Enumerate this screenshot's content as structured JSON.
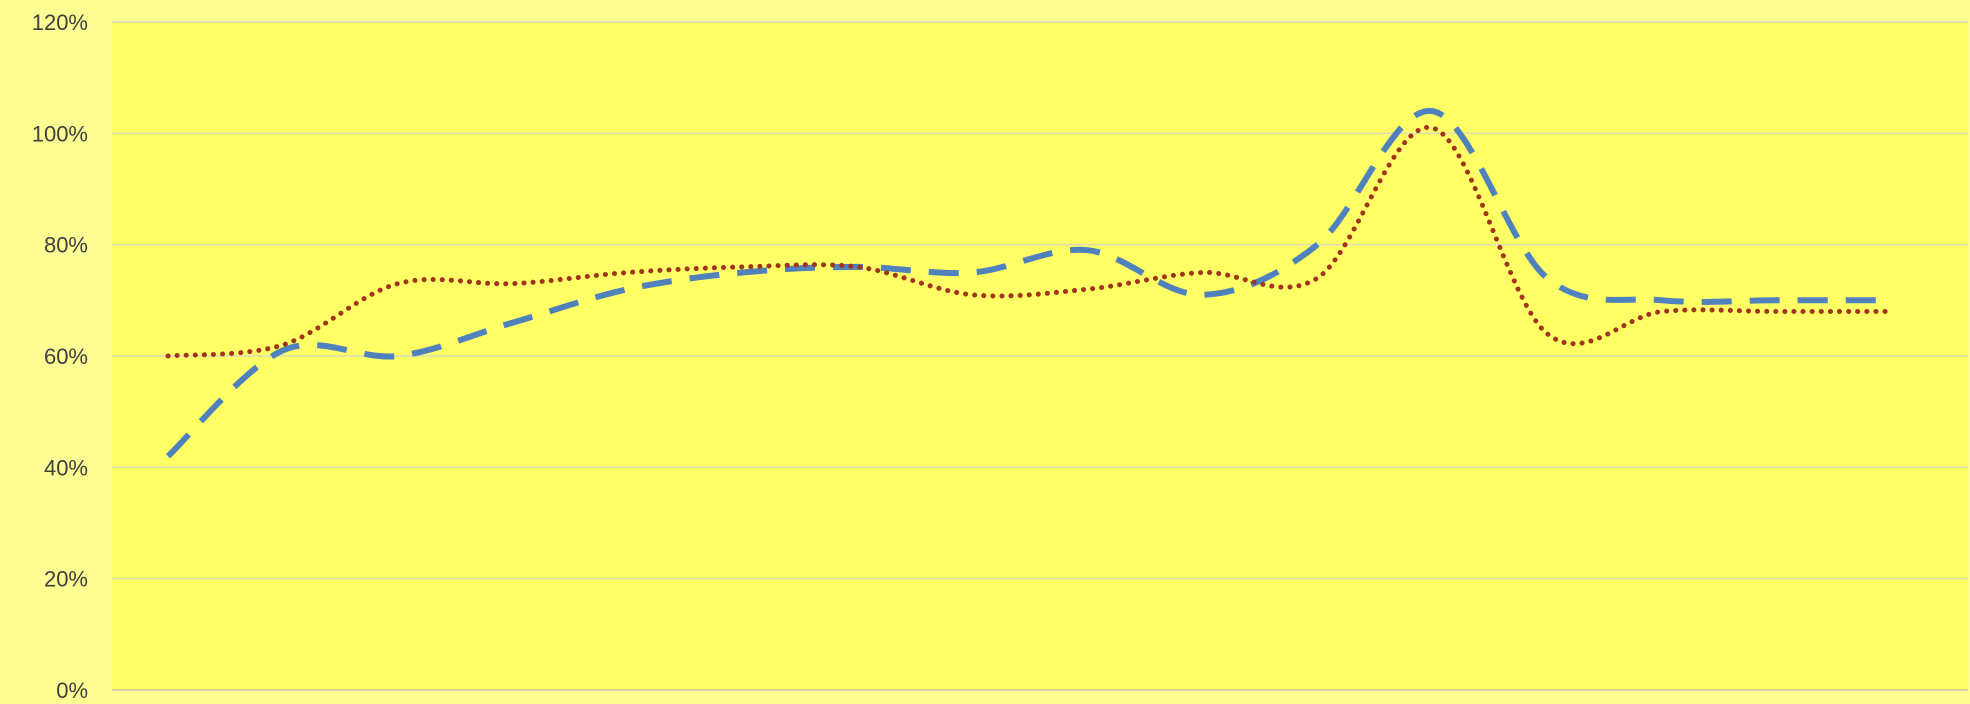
{
  "colors": {
    "outer_background": "#fdfd94",
    "plot_background": "#ffff66",
    "gridline": "#dcdcb4",
    "axis_line": "#c8c8a0",
    "tick_text": "#404040"
  },
  "chart_data": {
    "type": "line",
    "smooth": true,
    "title": "",
    "xlabel": "",
    "ylabel": "",
    "ylim": [
      0,
      120
    ],
    "y_ticks": [
      0,
      20,
      40,
      60,
      80,
      100,
      120
    ],
    "y_tick_labels": [
      "0%",
      "20%",
      "40%",
      "60%",
      "80%",
      "100%",
      "120%"
    ],
    "x": [
      1,
      2,
      3,
      4,
      5,
      6,
      7,
      8,
      9,
      10,
      11,
      12,
      13,
      14,
      15,
      16
    ],
    "grid": true,
    "legend": "none",
    "series": [
      {
        "style": "dashed",
        "color": "#4f81bd",
        "values": [
          42,
          61,
          60,
          66,
          72,
          75,
          76,
          75,
          79,
          71,
          80,
          104,
          74,
          70,
          70,
          70
        ]
      },
      {
        "style": "dotted",
        "color": "#a0351b",
        "values": [
          60,
          62,
          73,
          73,
          75,
          76,
          76,
          71,
          72,
          75,
          74,
          101,
          64,
          68,
          68,
          68
        ]
      }
    ]
  }
}
